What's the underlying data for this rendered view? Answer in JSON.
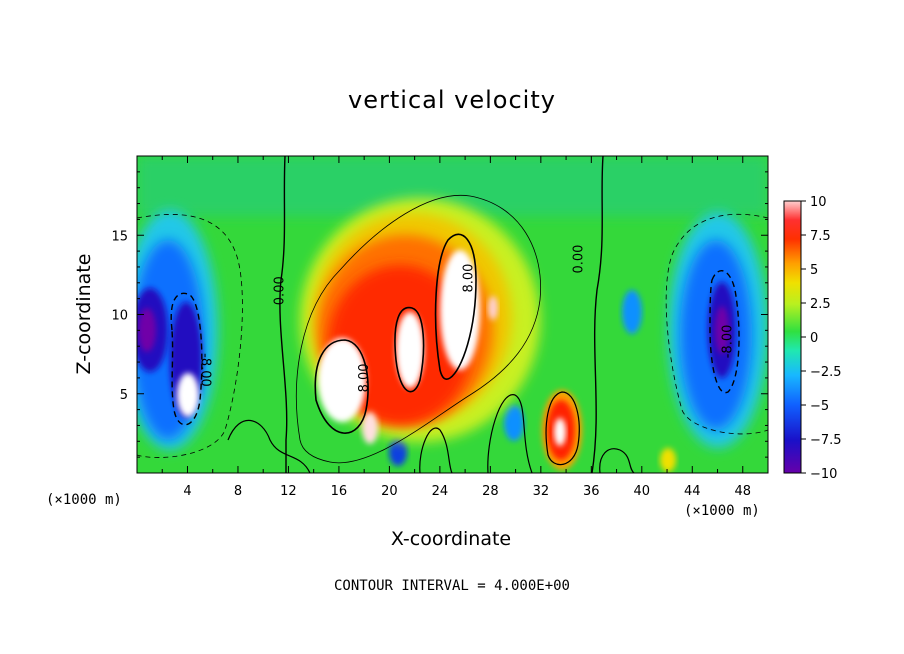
{
  "chart_data": {
    "type": "heatmap",
    "title": "vertical velocity",
    "xlabel": "X-coordinate",
    "ylabel": "Z-coordinate",
    "x_unit": "(×1000 m)",
    "z_unit": "(×1000 m)",
    "xlim": [
      0,
      50
    ],
    "ylim": [
      0,
      20
    ],
    "x_ticks": [
      "4",
      "8",
      "12",
      "16",
      "20",
      "24",
      "28",
      "32",
      "36",
      "40",
      "44",
      "48"
    ],
    "y_ticks": [
      "5",
      "10",
      "15"
    ],
    "colorbar": {
      "range": [
        -10,
        10
      ],
      "tick_labels": [
        "10",
        "7.5",
        "5",
        "2.5",
        "0",
        "−2.5",
        "−5",
        "−7.5",
        "−10"
      ],
      "tick_values": [
        10,
        7.5,
        5,
        2.5,
        0,
        -2.5,
        -5,
        -7.5,
        -10
      ]
    },
    "contour_labels": [
      "0.00",
      "0.00",
      "8.00",
      "8.00",
      "-8.00",
      "-8.00"
    ],
    "contour_interval": "CONTOUR INTERVAL = 4.000E+00",
    "features": [
      {
        "x": 3.5,
        "z": 8,
        "w": 3,
        "kind": "downdraft"
      },
      {
        "x": 1,
        "z": 10,
        "w": -9.5,
        "kind": "downdraft"
      },
      {
        "x": 4.5,
        "z": 5,
        "w": -14,
        "kind": "downdraft"
      },
      {
        "x": 46,
        "z": 9.5,
        "w": -9,
        "kind": "downdraft"
      },
      {
        "x": 16.5,
        "z": 5.5,
        "w": 12,
        "kind": "updraft"
      },
      {
        "x": 21,
        "z": 8.5,
        "w": 10,
        "kind": "updraft"
      },
      {
        "x": 25.5,
        "z": 11,
        "w": 13,
        "kind": "updraft"
      },
      {
        "x": 33.5,
        "z": 2.5,
        "w": 9,
        "kind": "updraft"
      },
      {
        "x": 24,
        "z": 9,
        "w": 5,
        "kind": "broad-updraft"
      }
    ]
  }
}
